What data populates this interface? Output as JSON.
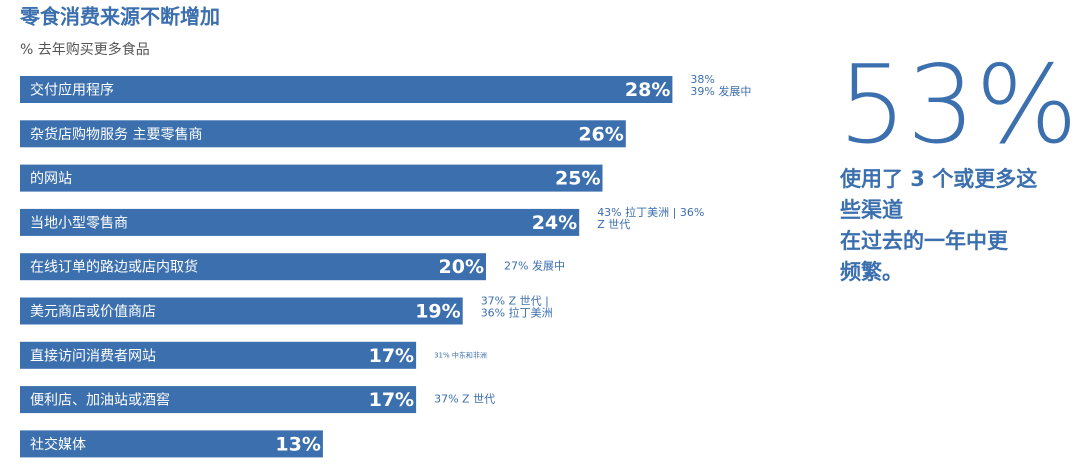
{
  "chart_data": {
    "type": "bar",
    "orientation": "horizontal",
    "title": "零食消费来源不断增加",
    "subtitle": "% 去年购买更多食品",
    "color": "#3b6fae",
    "categories": [
      "交付应用程序",
      "杂货店购物服务 主要零售商",
      "的网站",
      "当地小型零售商",
      "在线订单的路边或店内取货",
      "美元商店或价值商店",
      "直接访问消费者网站",
      "便利店、加油站或酒窖",
      "社交媒体"
    ],
    "values": [
      28,
      26,
      25,
      24,
      20,
      19,
      17,
      17,
      13
    ],
    "value_labels": [
      "28%",
      "26%",
      "25%",
      "24%",
      "20%",
      "19%",
      "17%",
      "17%",
      "13%"
    ],
    "annotations": [
      [
        "38%",
        "39% 发展中"
      ],
      null,
      null,
      [
        "43% 拉丁美洲 | 36%",
        "Z 世代"
      ],
      [
        "27% 发展中"
      ],
      [
        "37% Z 世代 |",
        "36% 拉丁美洲"
      ],
      [
        "31% 中东和非洲"
      ],
      [
        "37% Z 世代"
      ],
      null
    ],
    "callout": {
      "figure": "53%",
      "lines": [
        "使用了 3 个或更多这",
        "些渠道",
        "在过去的一年中更",
        "频繁。"
      ]
    }
  }
}
